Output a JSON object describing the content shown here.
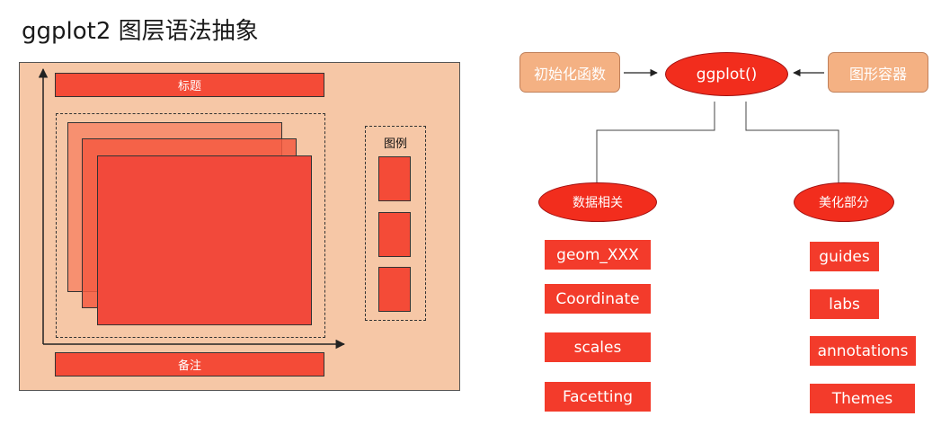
{
  "title": "ggplot2 图层语法抽象",
  "left_panel": {
    "title_bar": "标题",
    "note_bar": "备注",
    "legend_label": "图例"
  },
  "flow": {
    "init_func": "初始化函数",
    "ggplot": "ggplot()",
    "container": "图形容器",
    "data_branch": "数据相关",
    "aesthetic_branch": "美化部分",
    "data_items": [
      "geom_XXX",
      "Coordinate",
      "scales",
      "Facetting"
    ],
    "aesthetic_items": [
      "guides",
      "labs",
      "annotations",
      "Themes"
    ]
  },
  "colors": {
    "panel": "#f6c7a6",
    "red": "#f44b37",
    "box": "#f4b183",
    "ellipse": "#f22d1d"
  }
}
